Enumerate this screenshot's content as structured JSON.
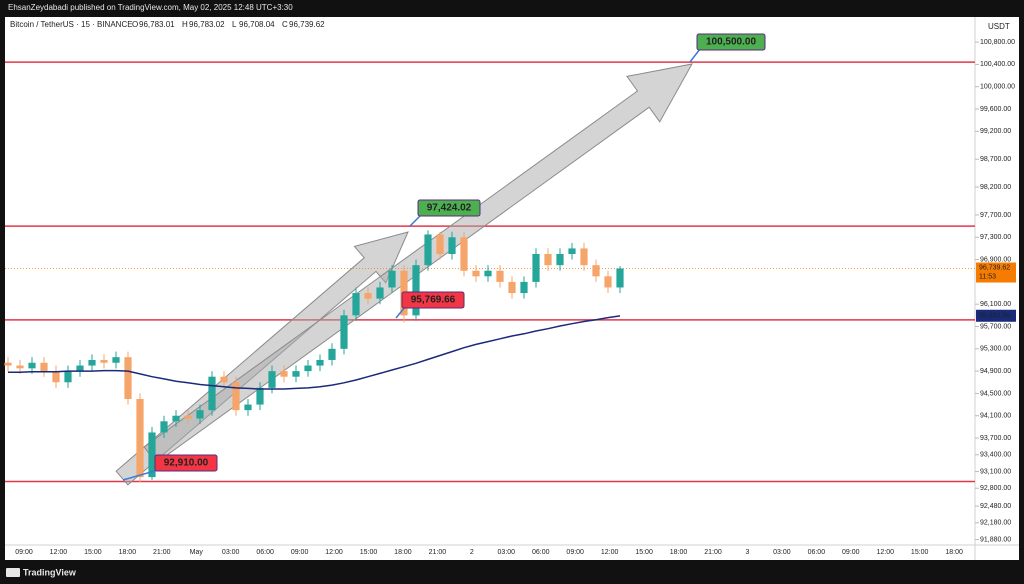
{
  "header": {
    "publisher_line": "EhsanZeydabadi published on TradingView.com, May 02, 2025 12:48 UTC+3:30",
    "symbol": "Bitcoin / TetherUS · 15 · BINANCE",
    "ohlc": [
      {
        "key": "O",
        "value": "96,783.01"
      },
      {
        "key": "H",
        "value": "96,783.02"
      },
      {
        "key": "L",
        "value": "96,708.04"
      },
      {
        "key": "C",
        "value": "96,739.62"
      }
    ],
    "currency": "USDT"
  },
  "footer": {
    "brand": "TradingView"
  },
  "chart_data": {
    "type": "candlestick",
    "up_color": "#26a69a",
    "down_color": "#f5a46a",
    "ylim": [
      91800,
      101250
    ],
    "yticks": [
      {
        "value": 100800,
        "label": "100,800.00"
      },
      {
        "value": 100400,
        "label": "100,400.00"
      },
      {
        "value": 100000,
        "label": "100,000.00"
      },
      {
        "value": 99600,
        "label": "99,600.00"
      },
      {
        "value": 99200,
        "label": "99,200.00"
      },
      {
        "value": 98700,
        "label": "98,700.00"
      },
      {
        "value": 98200,
        "label": "98,200.00"
      },
      {
        "value": 97700,
        "label": "97,700.00"
      },
      {
        "value": 97300,
        "label": "97,300.00"
      },
      {
        "value": 96900,
        "label": "96,900.00"
      },
      {
        "value": 96100,
        "label": "96,100.00"
      },
      {
        "value": 95700,
        "label": "95,700.00"
      },
      {
        "value": 95300,
        "label": "95,300.00"
      },
      {
        "value": 94900,
        "label": "94,900.00"
      },
      {
        "value": 94500,
        "label": "94,500.00"
      },
      {
        "value": 94100,
        "label": "94,100.00"
      },
      {
        "value": 93700,
        "label": "93,700.00"
      },
      {
        "value": 93400,
        "label": "93,400.00"
      },
      {
        "value": 93100,
        "label": "93,100.00"
      },
      {
        "value": 92800,
        "label": "92,800.00"
      },
      {
        "value": 92480,
        "label": "92,480.00"
      },
      {
        "value": 92180,
        "label": "92,180.00"
      },
      {
        "value": 91880,
        "label": "91,880.00"
      }
    ],
    "time_labels": [
      "09:00",
      "12:00",
      "15:00",
      "18:00",
      "21:00",
      "May",
      "03:00",
      "06:00",
      "09:00",
      "12:00",
      "15:00",
      "18:00",
      "21:00",
      "2",
      "03:00",
      "06:00",
      "09:00",
      "12:00",
      "15:00",
      "18:00",
      "21:00",
      "3",
      "03:00",
      "06:00",
      "09:00",
      "12:00",
      "15:00",
      "18:00"
    ],
    "open": [
      95050,
      95000,
      94950,
      95050,
      94900,
      94700,
      94900,
      95000,
      95100,
      95050,
      95150,
      94400,
      93000,
      93800,
      94000,
      94100,
      94050,
      94200,
      94800,
      94700,
      94200,
      94300,
      94600,
      94900,
      94800,
      94900,
      95000,
      95100,
      95300,
      95900,
      96300,
      96200,
      96400,
      96700,
      95900,
      96800,
      97350,
      97000,
      97300,
      96700,
      96600,
      96700,
      96500,
      96300,
      96500,
      97000,
      96800,
      97000,
      97100,
      96800,
      96600,
      96400
    ],
    "high": [
      95150,
      95100,
      95150,
      95150,
      95000,
      95000,
      95100,
      95200,
      95200,
      95250,
      95250,
      94500,
      93900,
      94100,
      94200,
      94200,
      94300,
      94900,
      94900,
      94800,
      94400,
      94700,
      95000,
      95000,
      95000,
      95100,
      95200,
      95400,
      96000,
      96400,
      96400,
      96500,
      96800,
      96800,
      96900,
      97424,
      97400,
      97400,
      97400,
      96800,
      96800,
      96800,
      96600,
      96600,
      97100,
      97100,
      97100,
      97200,
      97200,
      96900,
      96700,
      96783
    ],
    "low": [
      94900,
      94850,
      94850,
      94800,
      94600,
      94600,
      94800,
      94900,
      94950,
      94950,
      94300,
      92910,
      92950,
      93700,
      93900,
      93950,
      93950,
      94100,
      94600,
      94100,
      94100,
      94200,
      94500,
      94700,
      94700,
      94800,
      94900,
      95000,
      95200,
      95800,
      96100,
      96100,
      96300,
      95770,
      95800,
      96700,
      96900,
      96900,
      96600,
      96500,
      96500,
      96400,
      96200,
      96200,
      96400,
      96700,
      96700,
      96900,
      96700,
      96500,
      96300,
      96300
    ],
    "close": [
      95000,
      94950,
      95050,
      94900,
      94700,
      94900,
      95000,
      95100,
      95050,
      95150,
      94400,
      93000,
      93800,
      94000,
      94100,
      94050,
      94200,
      94800,
      94700,
      94200,
      94300,
      94600,
      94900,
      94800,
      94900,
      95000,
      95100,
      95300,
      95900,
      96300,
      96200,
      96400,
      96700,
      95900,
      96800,
      97350,
      97000,
      97300,
      96700,
      96600,
      96700,
      96500,
      96300,
      96500,
      97000,
      96800,
      97000,
      97100,
      96800,
      96600,
      96400,
      96740
    ],
    "moving_average": {
      "color": "#1a2a7a",
      "values": [
        94880,
        94880,
        94890,
        94890,
        94890,
        94900,
        94900,
        94900,
        94910,
        94910,
        94900,
        94850,
        94800,
        94760,
        94720,
        94690,
        94660,
        94640,
        94620,
        94600,
        94590,
        94580,
        94580,
        94580,
        94590,
        94600,
        94620,
        94650,
        94690,
        94740,
        94800,
        94860,
        94920,
        94980,
        95040,
        95110,
        95180,
        95250,
        95320,
        95380,
        95430,
        95480,
        95530,
        95570,
        95620,
        95660,
        95710,
        95750,
        95790,
        95820,
        95860,
        95890
      ],
      "last": {
        "value": 95892.86,
        "label": "95,892.86"
      }
    },
    "last_price": {
      "value": 96739.62,
      "label": "96,739.62",
      "countdown": "11:53",
      "color": "#f57c00"
    },
    "levels": {
      "color": "#e0384a",
      "values": [
        100440,
        97500,
        95820,
        92920
      ]
    },
    "annotations": [
      {
        "value": 92910,
        "label": "92,910.00",
        "color": "#f23645"
      },
      {
        "value": 97424.02,
        "label": "97,424.02",
        "color": "#4caf50"
      },
      {
        "value": 95769.66,
        "label": "95,769.66",
        "color": "#f23645"
      },
      {
        "value": 100500,
        "label": "100,500.00",
        "color": "#4caf50"
      }
    ]
  }
}
